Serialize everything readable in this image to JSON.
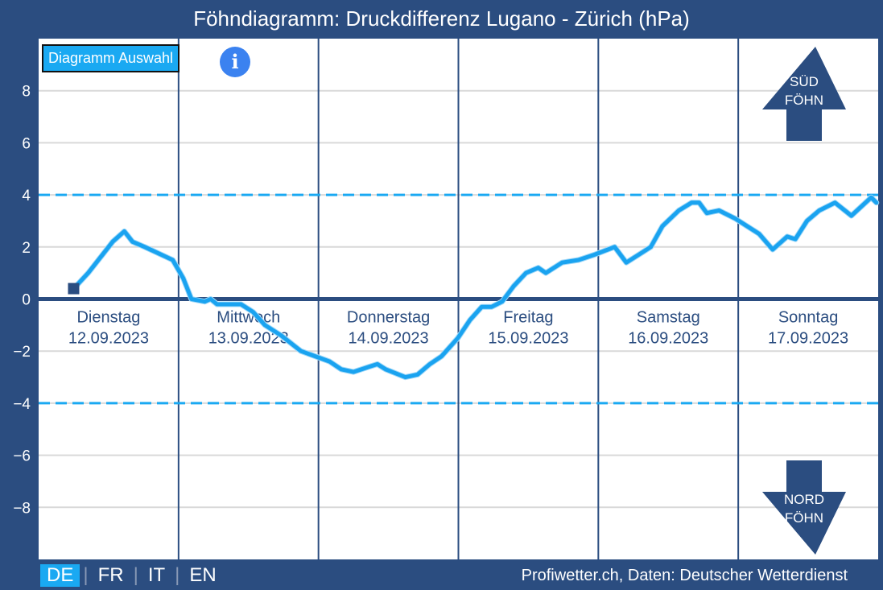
{
  "title": "Föhndiagramm: Druckdifferenz Lugano - Zürich (hPa)",
  "select_button": "Diagramm Auswahl",
  "info_icon": "i",
  "languages": [
    "DE",
    "FR",
    "IT",
    "EN"
  ],
  "active_language": "DE",
  "credit": "Profiwetter.ch, Daten: Deutscher Wetterdienst",
  "arrows": {
    "up": [
      "SÜD",
      "FÖHN"
    ],
    "down": [
      "NORD",
      "FÖHN"
    ]
  },
  "colors": {
    "background": "#2b4d80",
    "line": "#1aa3f0",
    "threshold": "#1aa9f2",
    "grid": "#d9d9d9"
  },
  "chart_data": {
    "type": "line",
    "title": "Föhndiagramm: Druckdifferenz Lugano - Zürich (hPa)",
    "xlabel": "",
    "ylabel": "hPa",
    "ylim": [
      -10,
      10
    ],
    "xlim_hours": [
      0,
      144
    ],
    "yticks": [
      8,
      6,
      4,
      2,
      0,
      -2,
      -4,
      -6,
      -8
    ],
    "ytick_labels": [
      "8",
      "6",
      "4",
      "2",
      "0",
      "−2",
      "−4",
      "−6",
      "−8"
    ],
    "thresholds": [
      4,
      -4
    ],
    "days": [
      {
        "name": "Dienstag",
        "date": "12.09.2023"
      },
      {
        "name": "Mittwoch",
        "date": "13.09.2023"
      },
      {
        "name": "Donnerstag",
        "date": "14.09.2023"
      },
      {
        "name": "Freitag",
        "date": "15.09.2023"
      },
      {
        "name": "Samstag",
        "date": "16.09.2023"
      },
      {
        "name": "Sonntag",
        "date": "17.09.2023"
      }
    ],
    "series": [
      {
        "name": "Druckdifferenz Lugano - Zürich",
        "x_hours": [
          6,
          8.5,
          12.7,
          14.7,
          16.1,
          18.2,
          23,
          24.8,
          26.2,
          28.5,
          29.5,
          30.6,
          34.7,
          36.8,
          38.8,
          41.6,
          45,
          49.9,
          51.9,
          54,
          56.7,
          58.1,
          59.5,
          62.9,
          65,
          67.1,
          69.1,
          71.9,
          74,
          76,
          77.7,
          79.5,
          81.5,
          83.6,
          85.7,
          87,
          89.8,
          92.6,
          95.3,
          98.8,
          100.8,
          103.6,
          105,
          107,
          109.8,
          112,
          113.3,
          114.6,
          116.7,
          119.4,
          121.5,
          123.6,
          125.9,
          128.4,
          129.8,
          131.8,
          133.9,
          136.6,
          139.4,
          142.8,
          143.7
        ],
        "values": [
          0.4,
          1.0,
          2.2,
          2.6,
          2.2,
          2.0,
          1.5,
          0.8,
          0,
          -0.1,
          0,
          -0.2,
          -0.2,
          -0.5,
          -1.0,
          -1.4,
          -2.0,
          -2.4,
          -2.7,
          -2.8,
          -2.6,
          -2.5,
          -2.7,
          -3.0,
          -2.9,
          -2.5,
          -2.2,
          -1.5,
          -0.8,
          -0.3,
          -0.3,
          -0.1,
          0.5,
          1.0,
          1.2,
          1.0,
          1.4,
          1.5,
          1.7,
          2.0,
          1.4,
          1.8,
          2.0,
          2.8,
          3.4,
          3.7,
          3.7,
          3.3,
          3.4,
          3.1,
          2.8,
          2.5,
          1.9,
          2.4,
          2.3,
          3.0,
          3.4,
          3.7,
          3.2,
          3.9,
          3.7
        ]
      }
    ]
  }
}
